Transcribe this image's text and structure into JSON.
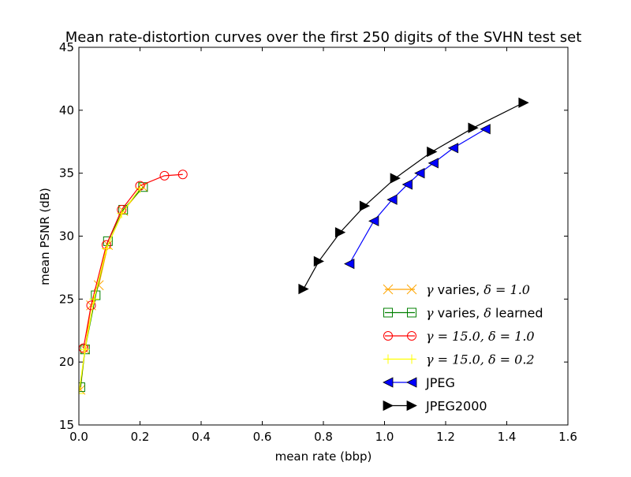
{
  "chart_data": {
    "type": "line",
    "title": "Mean rate-distortion curves over the first 250 digits of the SVHN test set",
    "xlabel": "mean rate (bbp)",
    "ylabel": "mean PSNR (dB)",
    "xlim": [
      0.0,
      1.6
    ],
    "ylim": [
      15,
      45
    ],
    "xticks": [
      0.0,
      0.2,
      0.4,
      0.6,
      0.8,
      1.0,
      1.2,
      1.4,
      1.6
    ],
    "xtick_labels": [
      "0.0",
      "0.2",
      "0.4",
      "0.6",
      "0.8",
      "1.0",
      "1.2",
      "1.4",
      "1.6"
    ],
    "yticks": [
      15,
      20,
      25,
      30,
      35,
      40,
      45
    ],
    "ytick_labels": [
      "15",
      "20",
      "25",
      "30",
      "35",
      "40",
      "45"
    ],
    "grid": false,
    "legend_position": "lower-right",
    "series": [
      {
        "legend_parts": [
          {
            "t": "γ",
            "math": true
          },
          {
            "t": " varies, ",
            "math": false
          },
          {
            "t": "δ = 1.0",
            "math": true
          }
        ],
        "color": "#ffa500",
        "marker": "x",
        "x": [
          0.005,
          0.02,
          0.04,
          0.065,
          0.095,
          0.145,
          0.21
        ],
        "y": [
          17.8,
          21.0,
          24.5,
          26.1,
          29.3,
          32.0,
          33.9
        ]
      },
      {
        "legend_parts": [
          {
            "t": "γ",
            "math": true
          },
          {
            "t": " varies, ",
            "math": false
          },
          {
            "t": "δ",
            "math": true
          },
          {
            "t": " learned",
            "math": false
          }
        ],
        "color": "#008000",
        "marker": "square",
        "x": [
          0.005,
          0.02,
          0.055,
          0.095,
          0.145,
          0.21
        ],
        "y": [
          18.0,
          21.0,
          25.3,
          29.6,
          32.1,
          33.9
        ]
      },
      {
        "legend_parts": [
          {
            "t": "γ = 15.0, δ = 1.0",
            "math": true
          }
        ],
        "color": "#ff0000",
        "marker": "circle",
        "x": [
          0.015,
          0.04,
          0.09,
          0.14,
          0.2,
          0.28,
          0.34
        ],
        "y": [
          21.1,
          24.5,
          29.3,
          32.1,
          34.0,
          34.8,
          34.9
        ]
      },
      {
        "legend_parts": [
          {
            "t": "γ = 15.0, δ = 0.2",
            "math": true
          }
        ],
        "color": "#ffff00",
        "marker": "plus",
        "x": [
          0.0,
          0.02,
          0.05,
          0.09,
          0.14,
          0.2
        ],
        "y": [
          17.5,
          21.0,
          25.0,
          29.0,
          31.8,
          33.8
        ]
      },
      {
        "legend_parts": [
          {
            "t": "JPEG",
            "math": false
          }
        ],
        "color": "#0000ff",
        "marker": "triangle-left",
        "x": [
          0.885,
          0.965,
          1.025,
          1.075,
          1.115,
          1.16,
          1.225,
          1.33
        ],
        "y": [
          27.8,
          31.2,
          32.9,
          34.1,
          35.0,
          35.8,
          37.0,
          38.5
        ]
      },
      {
        "legend_parts": [
          {
            "t": "JPEG2000",
            "math": false
          }
        ],
        "color": "#000000",
        "marker": "triangle-right",
        "x": [
          0.735,
          0.785,
          0.855,
          0.935,
          1.035,
          1.155,
          1.29,
          1.455
        ],
        "y": [
          25.8,
          28.0,
          30.3,
          32.4,
          34.6,
          36.7,
          38.6,
          40.6
        ]
      }
    ]
  }
}
